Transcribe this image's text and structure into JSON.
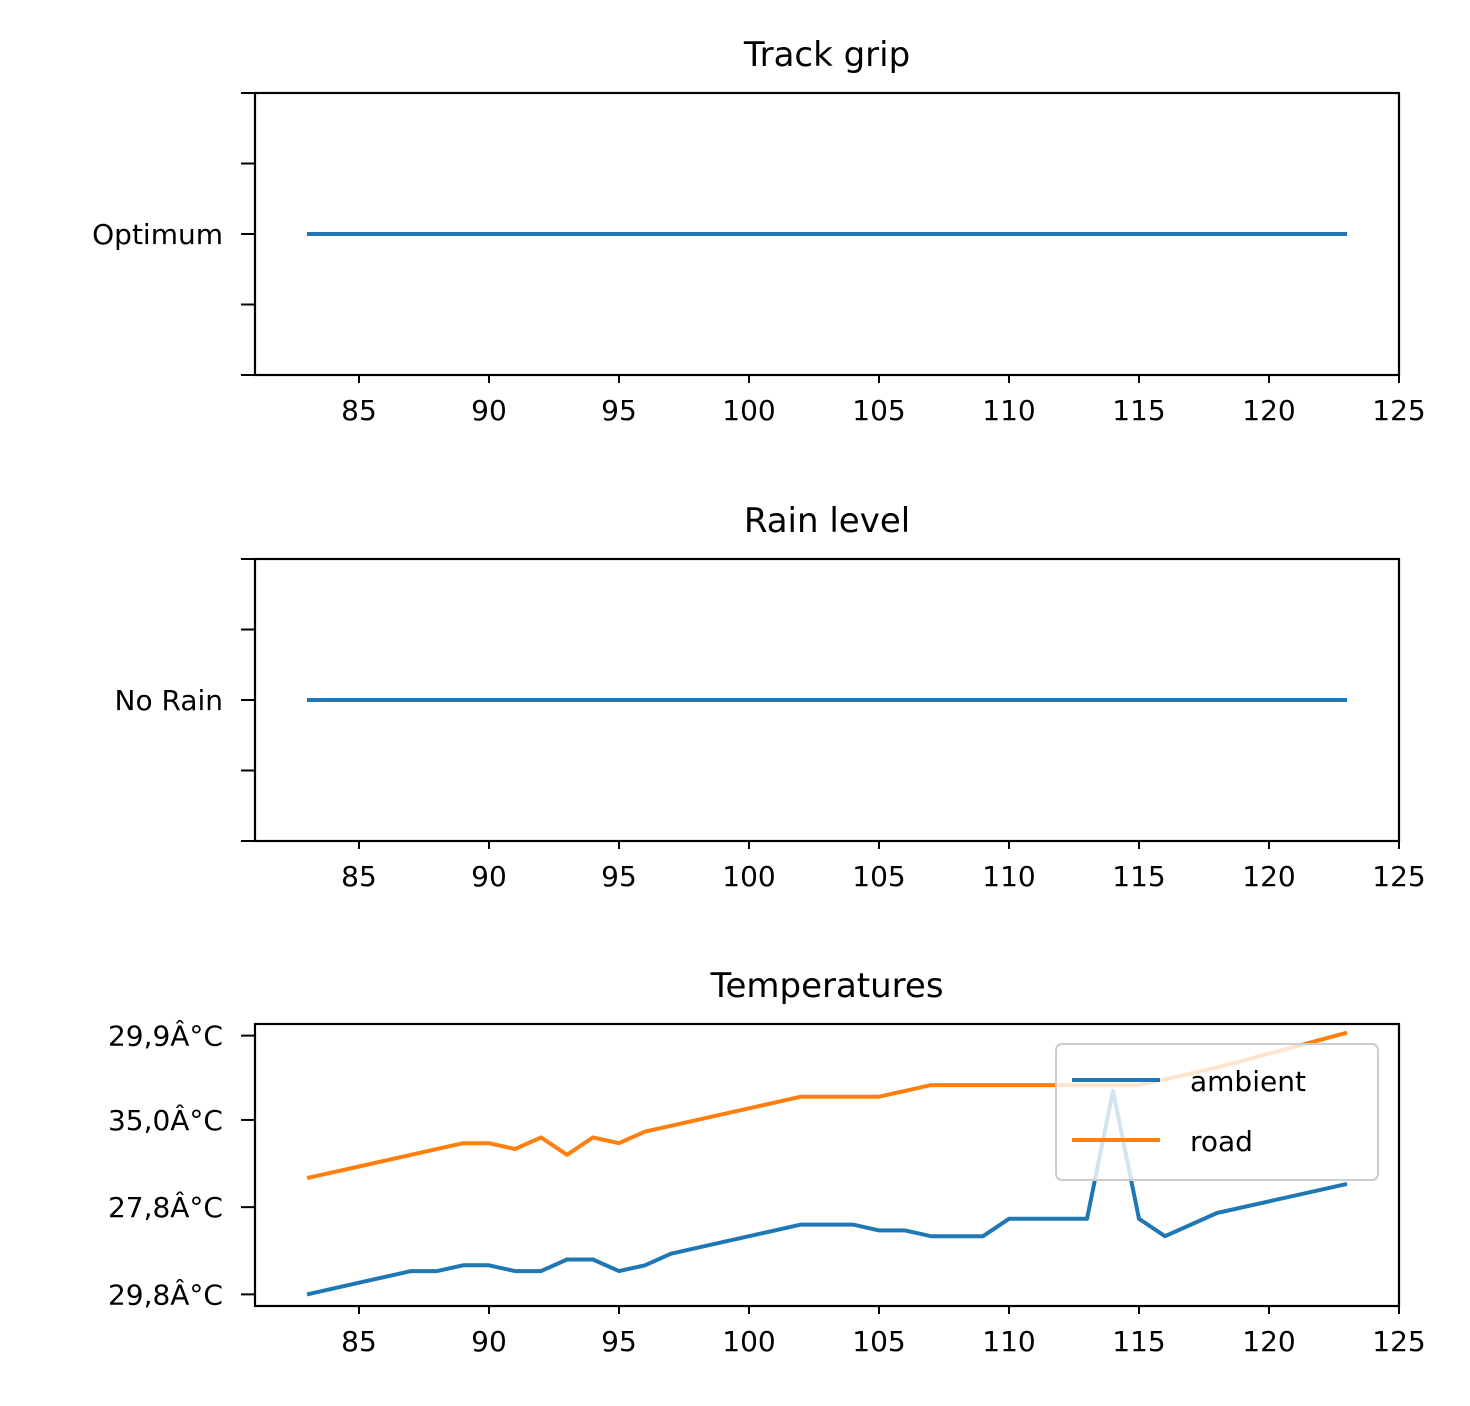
{
  "colors": {
    "blue": "#1f77b4",
    "orange": "#ff7f0e"
  },
  "chart_data": [
    {
      "type": "line",
      "title": "Track grip",
      "xlim": [
        81,
        125
      ],
      "xticks": [
        85,
        90,
        95,
        100,
        105,
        110,
        115,
        120,
        125
      ],
      "ylim": [
        0,
        4
      ],
      "yticks": [
        0,
        1,
        2,
        3,
        4
      ],
      "ytick_labels": [
        "",
        "",
        "Optimum",
        "",
        ""
      ],
      "series": [
        {
          "color": "#1f77b4",
          "x": [
            83,
            123
          ],
          "y": [
            2,
            2
          ]
        }
      ]
    },
    {
      "type": "line",
      "title": "Rain level",
      "xlim": [
        81,
        125
      ],
      "xticks": [
        85,
        90,
        95,
        100,
        105,
        110,
        115,
        120,
        125
      ],
      "ylim": [
        0,
        4
      ],
      "yticks": [
        0,
        1,
        2,
        3,
        4
      ],
      "ytick_labels": [
        "",
        "",
        "No Rain",
        "",
        ""
      ],
      "series": [
        {
          "color": "#1f77b4",
          "x": [
            83,
            123
          ],
          "y": [
            2,
            2
          ]
        }
      ]
    },
    {
      "type": "line",
      "title": "Temperatures",
      "xlim": [
        81,
        125
      ],
      "xticks": [
        85,
        90,
        95,
        100,
        105,
        110,
        115,
        120,
        125
      ],
      "ylim": [
        -0.2,
        4.65
      ],
      "yticks": [
        0,
        1.5,
        3,
        4.45
      ],
      "ytick_labels": [
        "29,8Â°C",
        "27,8Â°C",
        "35,0Â°C",
        "29,9Â°C"
      ],
      "legend": {
        "position": "upper right"
      },
      "series": [
        {
          "name": "ambient",
          "color": "#1f77b4",
          "x": [
            83,
            85,
            87,
            88,
            89,
            90,
            91,
            92,
            93,
            94,
            95,
            96,
            97,
            100,
            102,
            103,
            104,
            105,
            106,
            107,
            108,
            109,
            110,
            111,
            112,
            113,
            114,
            115,
            116,
            118,
            123
          ],
          "y": [
            0.0,
            0.2,
            0.4,
            0.4,
            0.5,
            0.5,
            0.4,
            0.4,
            0.6,
            0.6,
            0.4,
            0.5,
            0.7,
            1.0,
            1.2,
            1.2,
            1.2,
            1.1,
            1.1,
            1.0,
            1.0,
            1.0,
            1.3,
            1.3,
            1.3,
            1.3,
            3.5,
            1.3,
            1.0,
            1.4,
            1.9
          ]
        },
        {
          "name": "road",
          "color": "#ff7f0e",
          "x": [
            83,
            85,
            87,
            89,
            90,
            91,
            92,
            93,
            94,
            95,
            96,
            97,
            100,
            102,
            103,
            104,
            105,
            106,
            107,
            108,
            109,
            110,
            111,
            112,
            113,
            114,
            115,
            116,
            118,
            123
          ],
          "y": [
            2.0,
            2.2,
            2.4,
            2.6,
            2.6,
            2.5,
            2.7,
            2.4,
            2.7,
            2.6,
            2.8,
            2.9,
            3.2,
            3.4,
            3.4,
            3.4,
            3.4,
            3.5,
            3.6,
            3.6,
            3.6,
            3.6,
            3.6,
            3.6,
            3.6,
            3.6,
            3.6,
            3.7,
            3.9,
            4.5
          ]
        }
      ]
    }
  ]
}
